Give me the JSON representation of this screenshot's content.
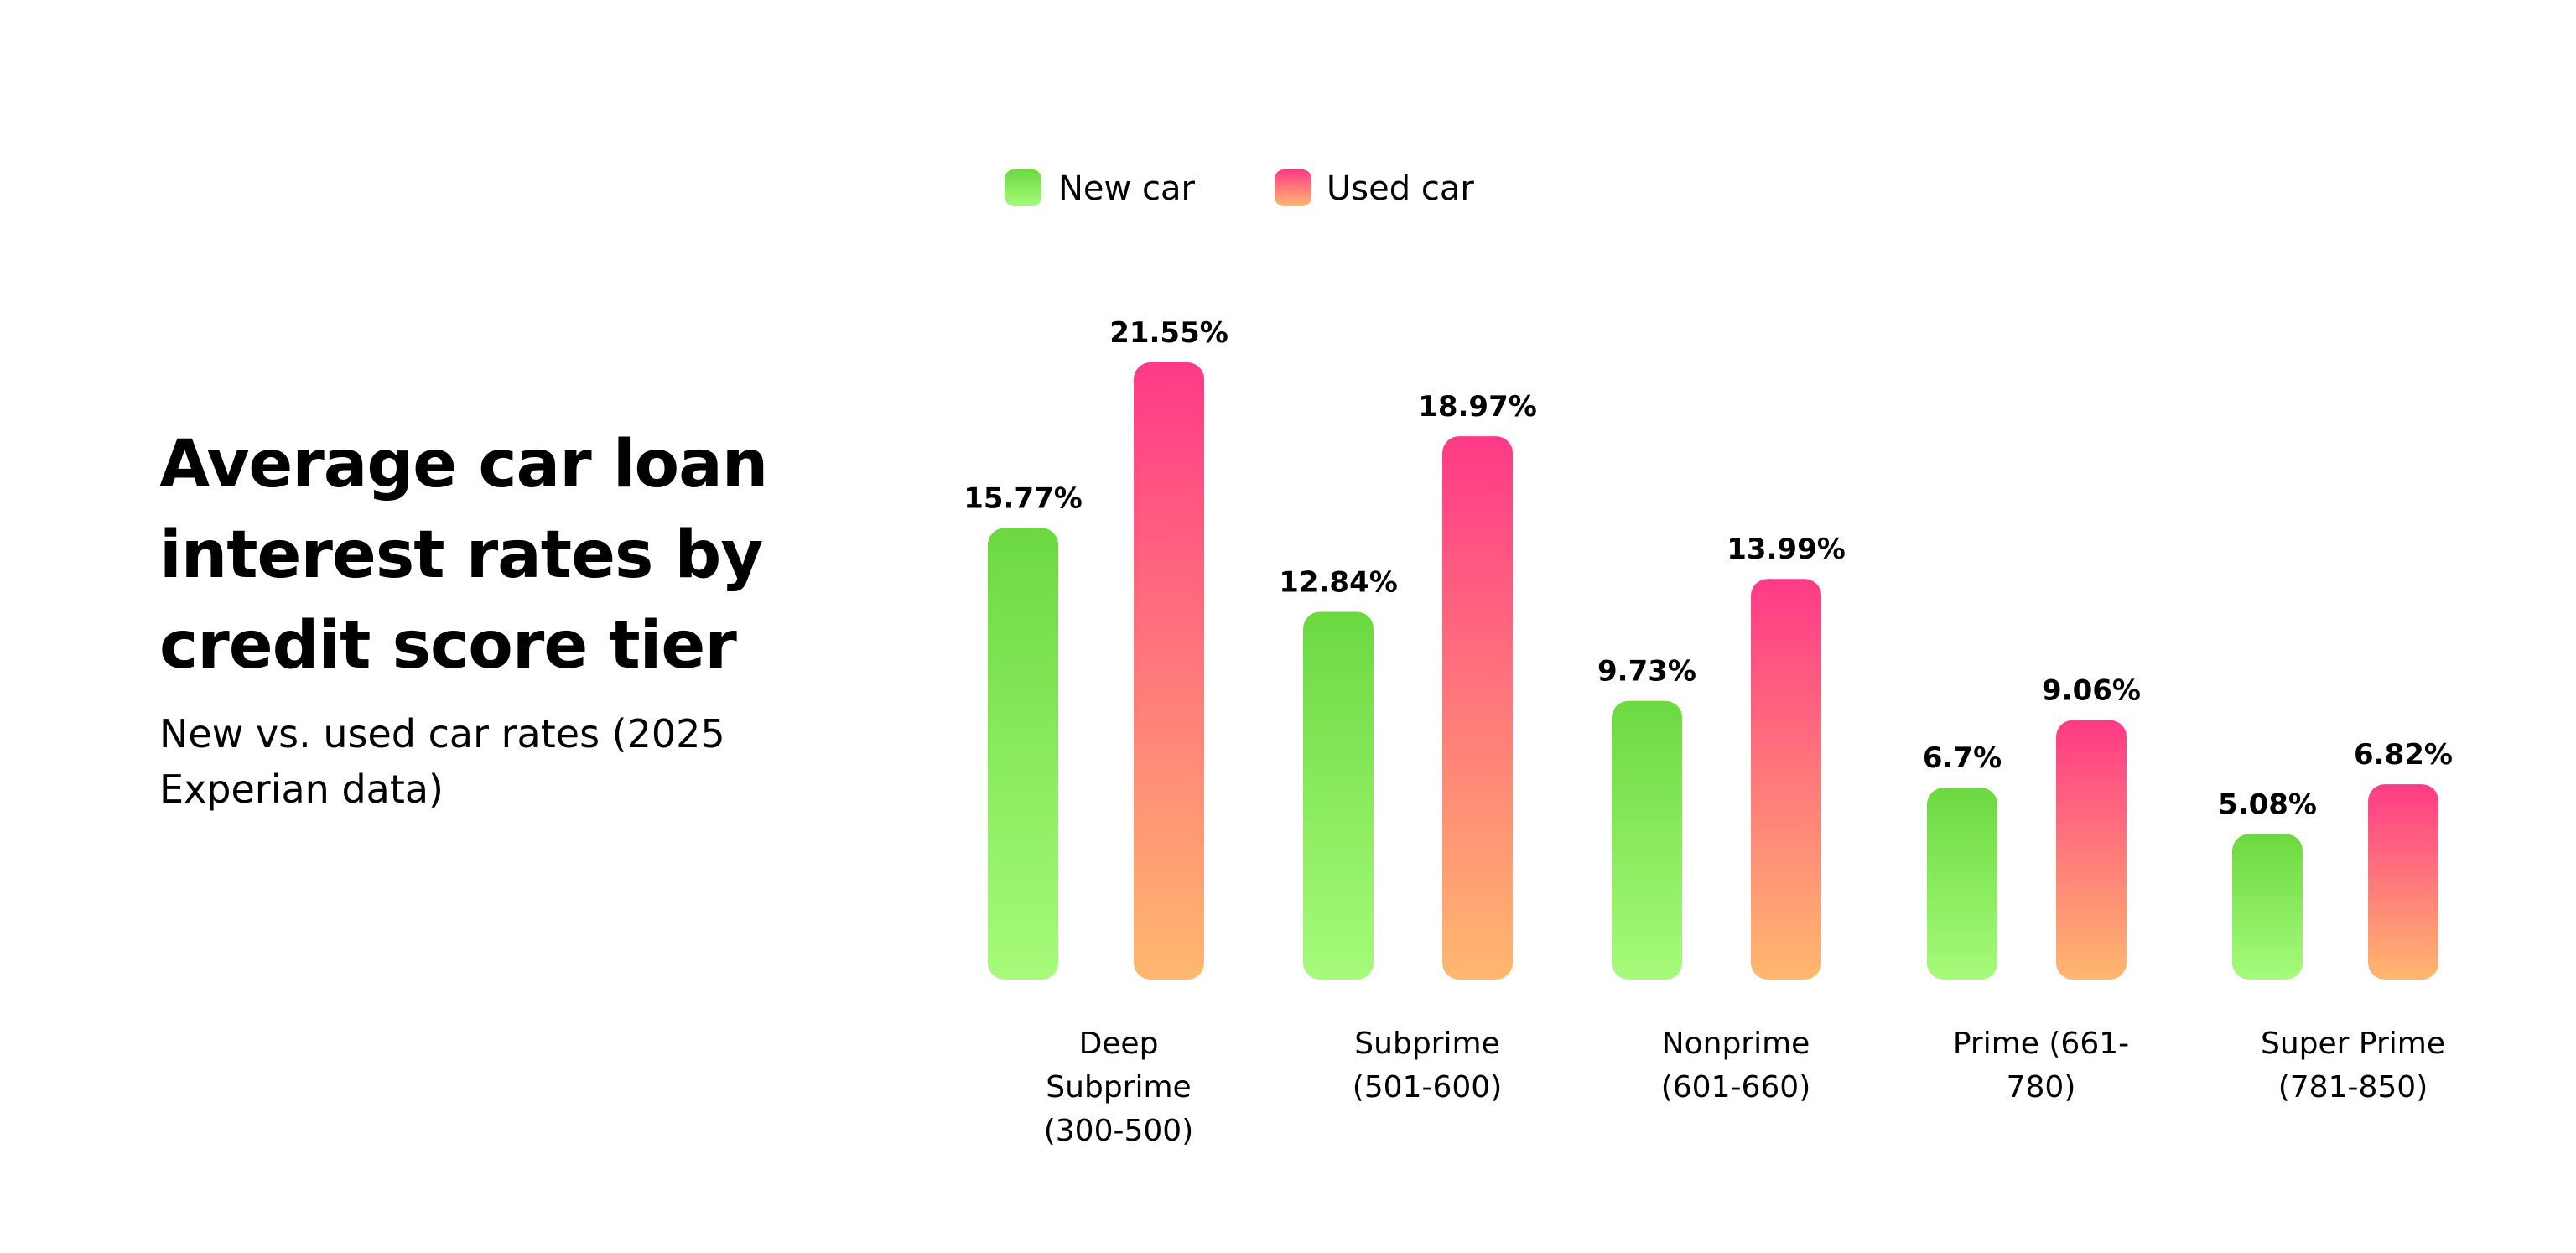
{
  "chart_data": {
    "type": "bar",
    "title": "Average car loan interest rates by credit score tier",
    "subtitle": "New vs. used car rates (2025 Experian data)",
    "categories": [
      [
        "Deep",
        "Subprime",
        "(300-500)"
      ],
      [
        "Subprime",
        "(501-600)"
      ],
      [
        "Nonprime",
        "(601-660)"
      ],
      [
        "Prime (661-",
        "780)"
      ],
      [
        "Super Prime",
        "(781-850)"
      ]
    ],
    "series": [
      {
        "name": "New car",
        "values": [
          15.77,
          12.84,
          9.73,
          6.7,
          5.08
        ],
        "labels": [
          "15.77%",
          "12.84%",
          "9.73%",
          "6.7%",
          "5.08%"
        ],
        "color_top": "#6cd941",
        "color_bottom": "#a6fb7a"
      },
      {
        "name": "Used car",
        "values": [
          21.55,
          18.97,
          13.99,
          9.06,
          6.82
        ],
        "labels": [
          "21.55%",
          "18.97%",
          "13.99%",
          "9.06%",
          "6.82%"
        ],
        "color_top": "#ff3a87",
        "color_bottom": "#ffb86e"
      }
    ],
    "ylim": [
      0,
      21.55
    ],
    "legend": "top-left",
    "grid": false
  }
}
